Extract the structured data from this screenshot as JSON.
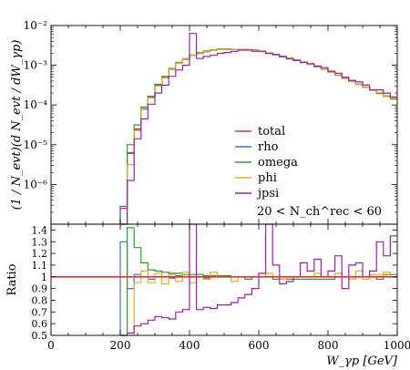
{
  "chart_data": {
    "type": "line",
    "ylabel_top": "(1 / N_evt)(d N_evt / dW_γp)",
    "ylabel_bottom": "Ratio",
    "xlabel": "W_γp [GeV]",
    "x_ticks": [
      "0",
      "200",
      "400",
      "600",
      "800",
      "1000"
    ],
    "top_y_ticks": [
      "10⁻⁶",
      "10⁻⁵",
      "10⁻⁴",
      "10⁻³",
      "10⁻²"
    ],
    "bottom_y_ticks": [
      "0.5",
      "0.6",
      "0.7",
      "0.8",
      "0.9",
      "1",
      "1.1",
      "1.2",
      "1.3",
      "1.4"
    ],
    "top_yscale": "log",
    "xlim": [
      0,
      1000
    ],
    "top_ylim_log10": [
      -7,
      -2
    ],
    "bottom_ylim": [
      0.5,
      1.45
    ],
    "legend_placement": "center-right",
    "annotation": "20 < N_ch^rec < 60",
    "bin_width": 20,
    "series": [
      {
        "name": "total",
        "color": "#e8322b",
        "x": [
          200,
          220,
          240,
          260,
          280,
          300,
          320,
          340,
          360,
          380,
          400,
          420,
          440,
          460,
          480,
          500,
          520,
          540,
          560,
          580,
          600,
          620,
          640,
          660,
          680,
          700,
          720,
          740,
          760,
          780,
          800,
          820,
          840,
          860,
          880,
          900,
          920,
          940,
          960,
          980
        ],
        "log10y": [
          -6.6,
          -5.2,
          -4.6,
          -4.1,
          -3.8,
          -3.5,
          -3.3,
          -3.1,
          -2.95,
          -2.85,
          -2.75,
          -2.7,
          -2.65,
          -2.62,
          -2.6,
          -2.6,
          -2.6,
          -2.6,
          -2.6,
          -2.62,
          -2.65,
          -2.7,
          -2.73,
          -2.78,
          -2.82,
          -2.87,
          -2.92,
          -2.97,
          -3.03,
          -3.1,
          -3.17,
          -3.25,
          -3.33,
          -3.4,
          -3.48,
          -3.55,
          -3.62,
          -3.7,
          -3.78,
          -3.85
        ]
      },
      {
        "name": "rho",
        "color": "#3b6fd6",
        "x": [
          200,
          220,
          240,
          260,
          280,
          300,
          320,
          340,
          360,
          380,
          400,
          420,
          440,
          460,
          480,
          500,
          520,
          540,
          560,
          580,
          600,
          620,
          640,
          660,
          680,
          700,
          720,
          740,
          760,
          780,
          800,
          820,
          840,
          860,
          880,
          900,
          920,
          940,
          960,
          980
        ],
        "log10y": [
          -6.55,
          -5.22,
          -4.62,
          -4.1,
          -3.8,
          -3.5,
          -3.3,
          -3.1,
          -2.95,
          -2.85,
          -2.75,
          -2.7,
          -2.66,
          -2.62,
          -2.6,
          -2.6,
          -2.6,
          -2.6,
          -2.6,
          -2.62,
          -2.65,
          -2.7,
          -2.73,
          -2.78,
          -2.82,
          -2.87,
          -2.92,
          -2.97,
          -3.03,
          -3.1,
          -3.17,
          -3.25,
          -3.33,
          -3.4,
          -3.48,
          -3.55,
          -3.62,
          -3.7,
          -3.78,
          -3.85
        ],
        "ratio": [
          1.3,
          0.9,
          1.02,
          1.0,
          0.98,
          1.0,
          1.0,
          0.99,
          1.01,
          1.0,
          1.0,
          1.0,
          0.99,
          1.0,
          1.0,
          1.0,
          1.0,
          1.0,
          1.0,
          1.0,
          1.0,
          1.0,
          1.0,
          1.0,
          1.0,
          1.0,
          1.0,
          1.0,
          1.0,
          1.0,
          1.0,
          1.0,
          1.0,
          1.0,
          1.0,
          1.0,
          1.0,
          1.0,
          1.0,
          1.0
        ]
      },
      {
        "name": "omega",
        "color": "#2ca02c",
        "x": [
          200,
          220,
          240,
          260,
          280,
          300,
          320,
          340,
          360,
          380,
          400,
          420,
          440,
          460,
          480,
          500,
          520,
          540,
          560,
          580,
          600,
          620,
          640,
          660,
          680,
          700,
          720,
          740,
          760,
          780,
          800,
          820,
          840,
          860,
          880,
          900,
          920,
          940,
          960,
          980
        ],
        "log10y": [
          -7.0,
          -5.0,
          -4.5,
          -4.05,
          -3.78,
          -3.48,
          -3.28,
          -3.08,
          -2.93,
          -2.83,
          -2.74,
          -2.68,
          -2.64,
          -2.61,
          -2.59,
          -2.59,
          -2.6,
          -2.6,
          -2.61,
          -2.62,
          -2.65,
          -2.7,
          -2.74,
          -2.79,
          -2.83,
          -2.88,
          -2.93,
          -2.98,
          -3.04,
          -3.11,
          -3.18,
          -3.25,
          -3.33,
          -3.41,
          -3.48,
          -3.55,
          -3.62,
          -3.71,
          -3.77,
          -3.84
        ],
        "ratio": [
          0.5,
          1.42,
          1.25,
          1.12,
          1.06,
          1.05,
          1.04,
          1.03,
          1.03,
          1.02,
          1.02,
          1.02,
          1.01,
          1.01,
          1.01,
          1.01,
          1.0,
          1.0,
          0.98,
          1.0,
          1.0,
          1.0,
          0.98,
          0.98,
          0.98,
          0.98,
          0.98,
          0.98,
          0.98,
          0.98,
          0.98,
          1.0,
          1.0,
          0.98,
          1.0,
          1.0,
          1.0,
          0.98,
          1.02,
          1.02
        ]
      },
      {
        "name": "phi",
        "color": "#f5a623",
        "x": [
          200,
          220,
          240,
          260,
          280,
          300,
          320,
          340,
          360,
          380,
          400,
          420,
          440,
          460,
          480,
          500,
          520,
          540,
          560,
          580,
          600,
          620,
          640,
          660,
          680,
          700,
          720,
          740,
          760,
          780,
          800,
          820,
          840,
          860,
          880,
          900,
          920,
          940,
          960,
          980
        ],
        "log10y": [
          -7.0,
          -5.5,
          -4.65,
          -4.08,
          -3.82,
          -3.52,
          -3.32,
          -3.1,
          -2.95,
          -2.84,
          -2.75,
          -2.69,
          -2.65,
          -2.62,
          -2.6,
          -2.6,
          -2.6,
          -2.6,
          -2.6,
          -2.63,
          -2.66,
          -2.69,
          -2.74,
          -2.78,
          -2.81,
          -2.87,
          -2.93,
          -2.97,
          -3.02,
          -3.11,
          -3.18,
          -3.24,
          -3.34,
          -3.41,
          -3.47,
          -3.56,
          -3.63,
          -3.69,
          -3.79,
          -3.86
        ],
        "ratio": [
          0.5,
          0.5,
          0.95,
          1.05,
          0.95,
          1.03,
          0.94,
          1.02,
          0.96,
          1.04,
          0.95,
          1.0,
          0.98,
          1.04,
          1.0,
          1.0,
          0.96,
          1.0,
          1.0,
          1.0,
          1.0,
          1.03,
          1.0,
          0.98,
          1.0,
          1.0,
          1.0,
          1.0,
          1.03,
          1.0,
          1.0,
          1.03,
          1.0,
          0.98,
          1.05,
          0.98,
          1.02,
          1.02,
          1.04,
          1.0
        ]
      },
      {
        "name": "jpsi",
        "color": "#9b1fae",
        "x": [
          200,
          220,
          240,
          260,
          280,
          300,
          320,
          340,
          360,
          380,
          400,
          420,
          440,
          460,
          480,
          500,
          520,
          540,
          560,
          580,
          600,
          620,
          640,
          660,
          680,
          700,
          720,
          740,
          760,
          780,
          800,
          820,
          840,
          860,
          880,
          900,
          920,
          940,
          960,
          980
        ],
        "log10y": [
          -7.0,
          -5.9,
          -4.85,
          -4.35,
          -3.98,
          -3.7,
          -3.5,
          -3.28,
          -3.12,
          -3.0,
          -2.2,
          -2.83,
          -2.78,
          -2.75,
          -2.7,
          -2.68,
          -2.65,
          -2.62,
          -2.62,
          -2.65,
          -2.65,
          -2.7,
          -2.73,
          -2.78,
          -2.84,
          -2.88,
          -2.93,
          -2.96,
          -3.02,
          -3.06,
          -3.15,
          -3.2,
          -3.3,
          -3.38,
          -3.42,
          -3.5,
          -3.62,
          -3.62,
          -3.7,
          -3.8
        ],
        "ratio": [
          0.5,
          0.52,
          0.58,
          0.6,
          0.63,
          0.66,
          0.65,
          0.64,
          0.7,
          0.72,
          2.0,
          0.72,
          0.74,
          0.73,
          0.76,
          0.76,
          0.78,
          0.82,
          0.85,
          0.9,
          1.03,
          1.5,
          1.1,
          0.94,
          0.96,
          1.0,
          1.12,
          1.05,
          1.15,
          1.0,
          1.05,
          1.18,
          0.9,
          1.1,
          1.12,
          1.0,
          1.05,
          1.3,
          1.18,
          1.35
        ]
      }
    ]
  }
}
